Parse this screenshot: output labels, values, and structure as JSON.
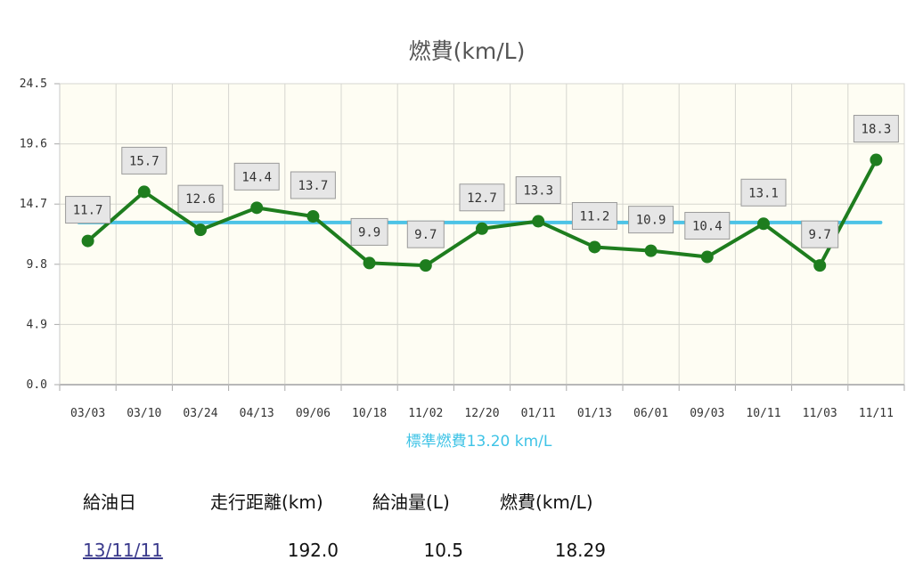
{
  "chart_data": {
    "type": "line",
    "title": "燃費(km/L)",
    "categories": [
      "03/03",
      "03/10",
      "03/24",
      "04/13",
      "09/06",
      "10/18",
      "11/02",
      "12/20",
      "01/11",
      "01/13",
      "06/01",
      "09/03",
      "10/11",
      "11/03",
      "11/11"
    ],
    "series": [
      {
        "values": [
          11.7,
          15.7,
          12.6,
          14.4,
          13.7,
          9.9,
          9.7,
          12.7,
          13.3,
          11.2,
          10.9,
          10.4,
          13.1,
          9.7,
          18.3
        ],
        "color": "#1e7d1e"
      }
    ],
    "data_labels": [
      "11.7",
      "15.7",
      "12.6",
      "14.4",
      "13.7",
      "9.9",
      "9.7",
      "12.7",
      "13.3",
      "11.2",
      "10.9",
      "10.4",
      "13.1",
      "9.7",
      "18.3"
    ],
    "reference_line": {
      "value": 13.2,
      "label": "標準燃費13.20 km/L",
      "color": "#4cc3e6"
    },
    "yticks": [
      "0.0",
      "4.9",
      "9.8",
      "14.7",
      "19.6",
      "24.5"
    ],
    "ylim": [
      0,
      24.5
    ],
    "grid": true,
    "plot_background": "#fefdf3",
    "xlabel": "",
    "ylabel": ""
  },
  "table": {
    "headers": [
      "給油日",
      "走行距離(km)",
      "給油量(L)",
      "燃費(km/L)"
    ],
    "row": {
      "date": "13/11/11",
      "distance": "192.0",
      "fuel": "10.5",
      "economy": "18.29"
    }
  }
}
